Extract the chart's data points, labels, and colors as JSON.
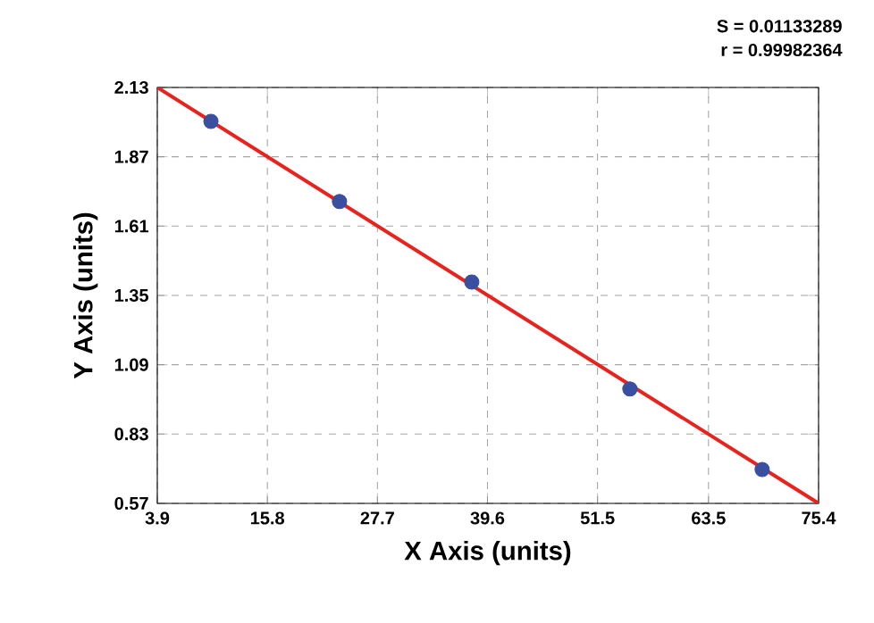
{
  "chart_data": {
    "type": "scatter",
    "xlabel": "X Axis (units)",
    "ylabel": "Y Axis (units)",
    "annotations": [
      "S = 0.01133289",
      "r = 0.99982364"
    ],
    "xlim": [
      3.9,
      75.4
    ],
    "xticks": [
      3.9,
      15.8,
      27.7,
      39.6,
      51.5,
      63.5,
      75.4
    ],
    "ylim": [
      0.57,
      2.13
    ],
    "yticks": [
      0.57,
      0.83,
      1.09,
      1.35,
      1.61,
      1.87,
      2.13
    ],
    "grid": true,
    "series": [
      {
        "type": "line",
        "marker": "none",
        "color": "#e8221c",
        "x": [
          3.9,
          75.4
        ],
        "values": [
          2.13,
          0.57
        ]
      },
      {
        "marker": "circle",
        "color": "#3a4fa0",
        "x": [
          9.7,
          23.6,
          37.9,
          55.0,
          69.3
        ],
        "values": [
          2.003,
          1.702,
          1.4,
          0.999,
          0.697
        ]
      }
    ]
  }
}
